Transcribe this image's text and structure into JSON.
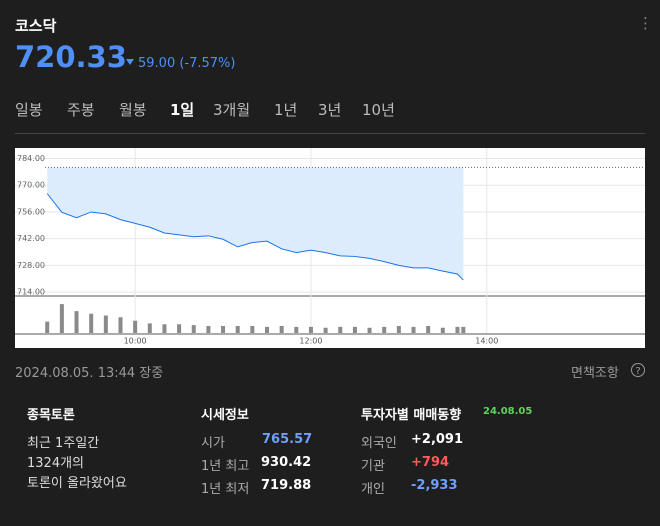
{
  "header": {
    "title": "코스닥",
    "price": "720.33",
    "change": "59.00 (-7.57%)"
  },
  "tabs": [
    "일봉",
    "주봉",
    "월봉",
    "1일",
    "3개월",
    "1년",
    "3년",
    "10년"
  ],
  "chart_data": {
    "type": "line",
    "x": [
      "09:00",
      "09:10",
      "09:20",
      "09:30",
      "09:40",
      "09:50",
      "10:00",
      "10:10",
      "10:20",
      "10:30",
      "10:40",
      "10:50",
      "11:00",
      "11:10",
      "11:20",
      "11:30",
      "11:40",
      "11:50",
      "12:00",
      "12:10",
      "12:20",
      "12:30",
      "12:40",
      "12:50",
      "13:00",
      "13:10",
      "13:20",
      "13:30",
      "13:40",
      "13:44"
    ],
    "series": [
      {
        "color": "#1a73e8",
        "values": [
          765.6,
          755.8,
          753,
          756,
          755,
          752,
          750,
          748,
          745,
          744,
          743,
          743.5,
          741.7,
          737.7,
          740,
          740.7,
          736.7,
          734.7,
          736,
          734.7,
          733,
          732.7,
          731.7,
          730,
          728,
          726.7,
          726.7,
          725,
          723.5,
          720.33
        ]
      },
      {
        "type": "bar",
        "color": "#8a8a8a",
        "values": [
          13,
          33,
          25,
          22,
          20,
          18,
          14,
          11,
          10,
          10,
          9,
          8,
          8,
          8,
          8,
          7,
          8,
          7,
          7,
          6,
          7,
          7,
          6,
          7,
          8,
          7,
          8,
          6,
          7,
          7
        ],
        "ylim": [
          0,
          40
        ]
      }
    ],
    "reference_line": 779.33,
    "ylim": [
      712.5,
      789.5
    ],
    "yticks": [
      {
        "value": 784,
        "label": "784.00"
      },
      {
        "value": 770,
        "label": "770.00"
      },
      {
        "value": 756,
        "label": "756.00"
      },
      {
        "value": 742,
        "label": "742.00"
      },
      {
        "value": 728,
        "label": "728.00"
      },
      {
        "value": 714,
        "label": "714.00"
      }
    ],
    "xlim": [
      "08:38",
      "15:48"
    ],
    "xticks": [
      "10:00",
      "12:00",
      "14:00"
    ],
    "grid": true
  },
  "timestamp": "2024.08.05. 13:44 장중",
  "disclaimer": "면책조항",
  "discussion": {
    "title": "종목토론",
    "lines": [
      "최근 1주일간",
      "1324개의",
      "토론이 올라왔어요"
    ]
  },
  "quote": {
    "title": "시세정보",
    "rows": [
      [
        "시가",
        "765.57"
      ],
      [
        "1년 최고",
        "930.42"
      ],
      [
        "1년 최저",
        "719.88"
      ]
    ]
  },
  "investors": {
    "title": "투자자별 매매동향",
    "date": "24.08.05",
    "rows": [
      [
        "외국인",
        "+2,091"
      ],
      [
        "기관",
        "+794"
      ],
      [
        "개인",
        "-2,933"
      ]
    ]
  }
}
